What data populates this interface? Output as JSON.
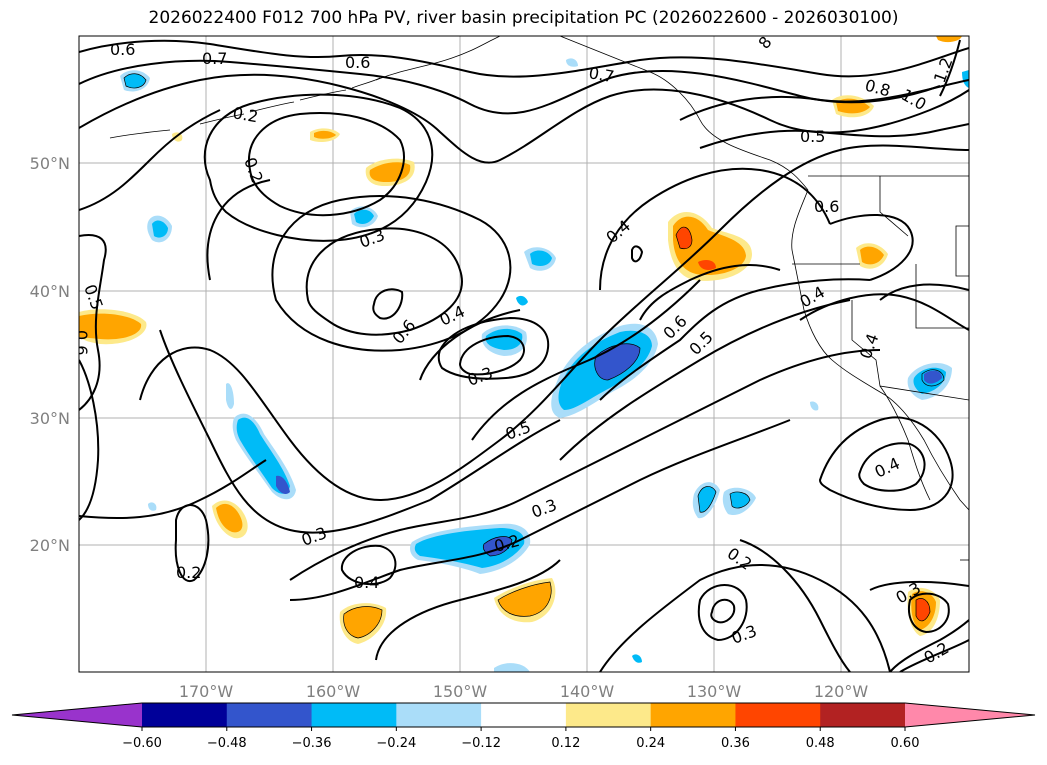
{
  "title": "2026022400 F012 700 hPa PV, river basin precipitation PC (2026022600 - 2026030100)",
  "map": {
    "lat_labels": [
      "50°N",
      "40°N",
      "30°N",
      "20°N"
    ],
    "lon_labels": [
      "170°W",
      "160°W",
      "150°W",
      "140°W",
      "130°W",
      "120°W"
    ],
    "contour_labels": [
      "0.6",
      "0.7",
      "0.6",
      "0.2",
      "0.3",
      "0.5",
      "0.6",
      "0.4",
      "0.6",
      "0.3",
      "0.5",
      "0.4",
      "0.7",
      "0.5",
      "0.6",
      "0.8",
      "1.0",
      "1.2",
      "8",
      "0.6",
      "0.4",
      "0.4",
      "0.5",
      "0.4",
      "0.2",
      "0.3",
      "0.2",
      "0.4",
      "0.3",
      "0.2",
      "0.3",
      "0.2",
      "0.3",
      "0.2"
    ]
  },
  "colorbar": {
    "ticks": [
      "−0.60",
      "−0.48",
      "−0.36",
      "−0.24",
      "−0.12",
      "0.12",
      "0.24",
      "0.36",
      "0.48",
      "0.60"
    ],
    "colors": [
      "#9933cc",
      "#000099",
      "#3355cc",
      "#00bbf7",
      "#aaddf9",
      "#ffffff",
      "#fde98a",
      "#ffa500",
      "#ff4500",
      "#b22222",
      "#ff88aa"
    ]
  }
}
